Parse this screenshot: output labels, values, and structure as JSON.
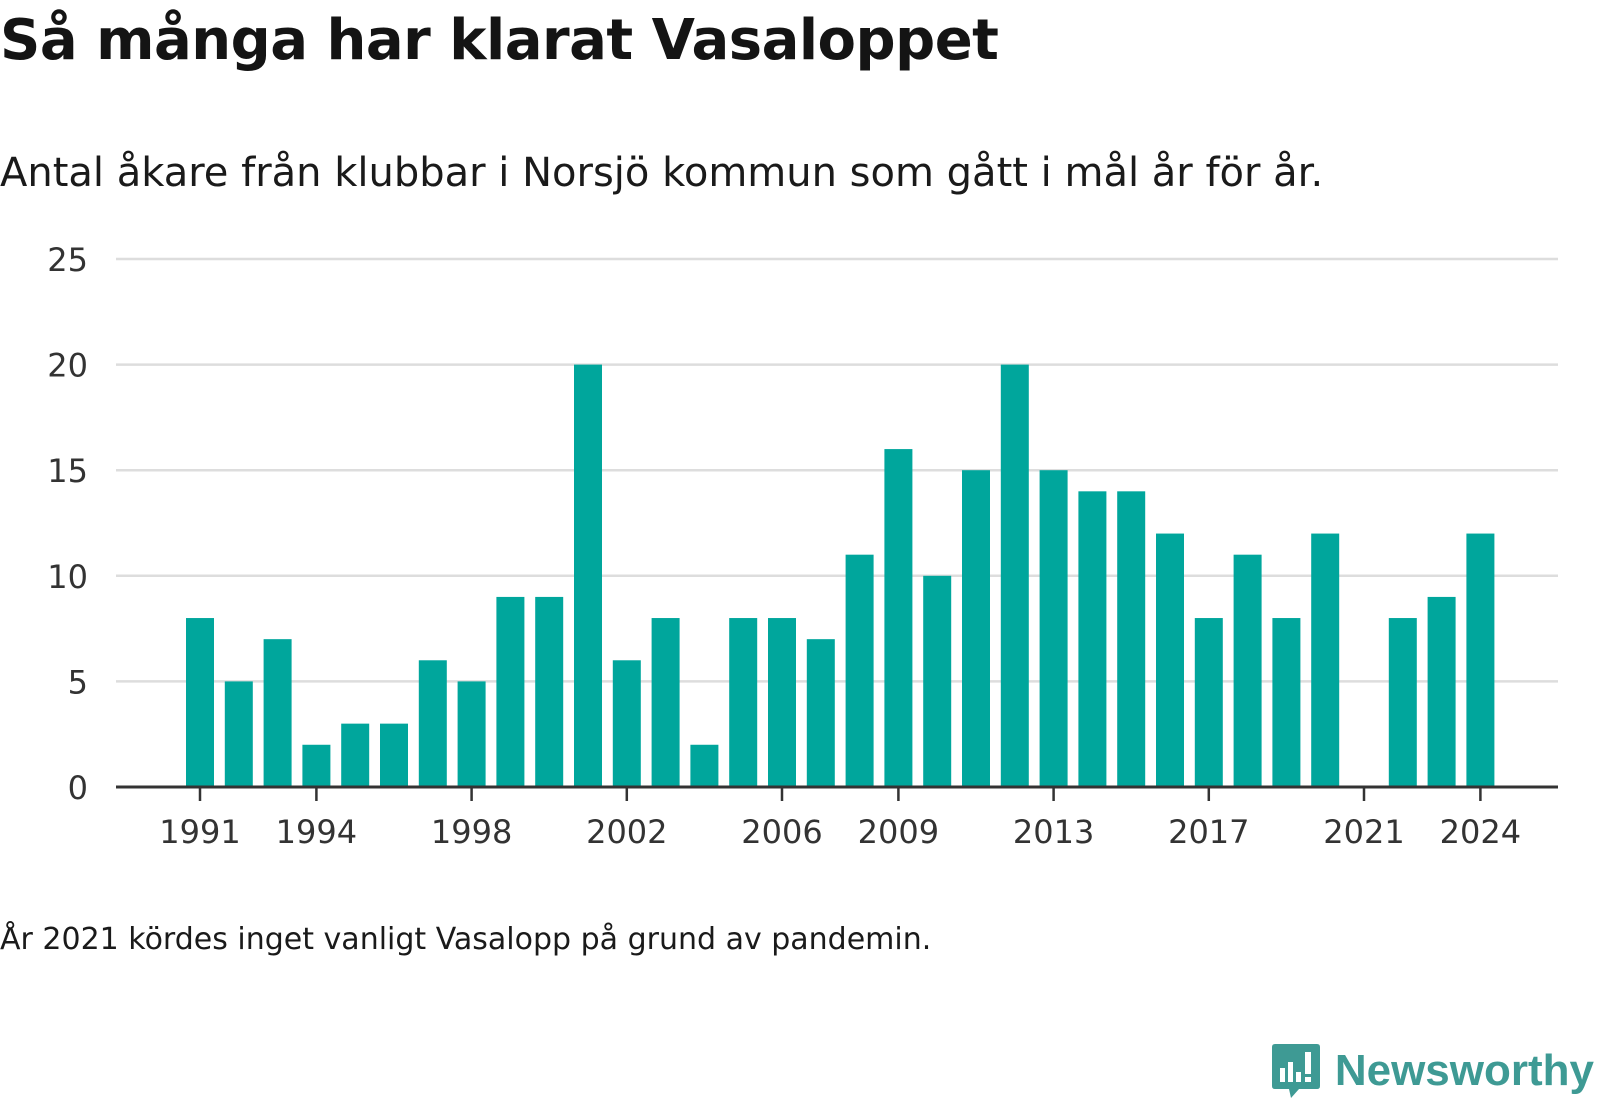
{
  "header": {
    "title": "Så många har klarat Vasaloppet",
    "subtitle": "Antal åkare från klubbar i Norsjö kommun som gått i mål år för år."
  },
  "footer": {
    "note": "År 2021 kördes inget vanligt Vasalopp på grund av pandemin.",
    "brand": "Newsworthy"
  },
  "colors": {
    "bar": "#00a69c",
    "grid": "#dddddd",
    "axis": "#333333",
    "brand": "#3e9a94"
  },
  "chart_data": {
    "type": "bar",
    "title": "Så många har klarat Vasaloppet",
    "subtitle": "Antal åkare från klubbar i Norsjö kommun som gått i mål år för år.",
    "categories": [
      1991,
      1992,
      1993,
      1994,
      1995,
      1996,
      1997,
      1998,
      1999,
      2000,
      2001,
      2002,
      2003,
      2004,
      2005,
      2006,
      2007,
      2008,
      2009,
      2010,
      2011,
      2012,
      2013,
      2014,
      2015,
      2016,
      2017,
      2018,
      2019,
      2020,
      2021,
      2022,
      2023,
      2024
    ],
    "values": [
      8,
      5,
      7,
      2,
      3,
      3,
      6,
      5,
      9,
      9,
      20,
      6,
      8,
      2,
      8,
      8,
      7,
      11,
      16,
      10,
      15,
      20,
      15,
      14,
      14,
      12,
      8,
      11,
      8,
      12,
      null,
      8,
      9,
      12
    ],
    "x_tick_labels": [
      "1991",
      "1994",
      "1998",
      "2002",
      "2006",
      "2009",
      "2013",
      "2017",
      "2021",
      "2024"
    ],
    "y_ticks": [
      0,
      5,
      10,
      15,
      20,
      25
    ],
    "ylim": [
      0,
      25
    ],
    "grid": true,
    "legend": "none",
    "xlabel": "",
    "ylabel": ""
  }
}
